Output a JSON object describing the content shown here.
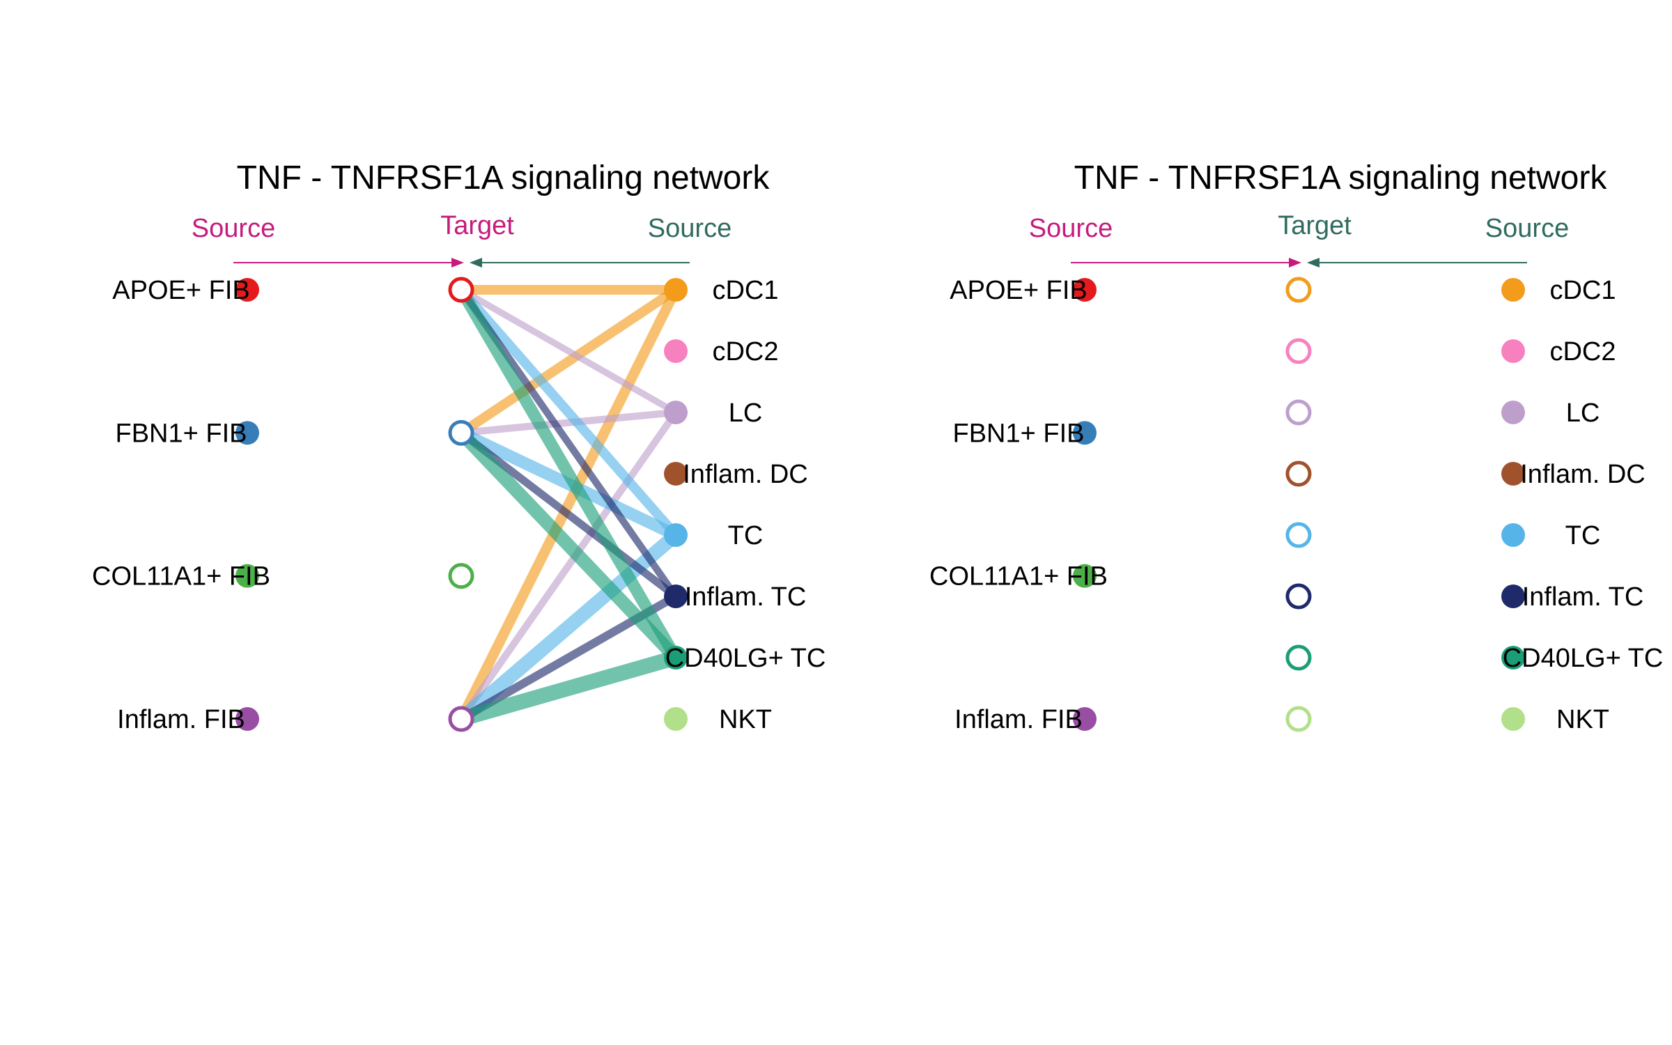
{
  "panels": [
    {
      "title": "TNF - TNFRSF1A signaling network",
      "header": {
        "left_source": "Source",
        "target": "Target",
        "right_source": "Source"
      },
      "left_sources": [
        {
          "label": "APOE+ FIB",
          "color": "#E41A1C"
        },
        {
          "label": "FBN1+ FIB",
          "color": "#377EB8"
        },
        {
          "label": "COL11A1+ FIB",
          "color": "#4DAF4A"
        },
        {
          "label": "Inflam. FIB",
          "color": "#984EA3"
        }
      ],
      "targets": [
        {
          "color": "#E41A1C"
        },
        {
          "color": "#377EB8"
        },
        {
          "color": "#4DAF4A"
        },
        {
          "color": "#984EA3"
        }
      ],
      "right_sources": [
        {
          "label": "cDC1",
          "color": "#F39B1B"
        },
        {
          "label": "cDC2",
          "color": "#F781BF"
        },
        {
          "label": "LC",
          "color": "#BE9FCC"
        },
        {
          "label": "Inflam. DC",
          "color": "#A0522D"
        },
        {
          "label": "TC",
          "color": "#56B4E9"
        },
        {
          "label": "Inflam. TC",
          "color": "#1F2A6B"
        },
        {
          "label": "CD40LG+ TC",
          "color": "#1B9E77"
        },
        {
          "label": "NKT",
          "color": "#B2DF8A"
        }
      ],
      "edges": [
        {
          "source": 0,
          "target": 0,
          "weight": 0.55
        },
        {
          "source": 0,
          "target": 1,
          "weight": 0.55
        },
        {
          "source": 0,
          "target": 3,
          "weight": 0.6
        },
        {
          "source": 2,
          "target": 0,
          "weight": 0.3
        },
        {
          "source": 2,
          "target": 1,
          "weight": 0.35
        },
        {
          "source": 2,
          "target": 3,
          "weight": 0.35
        },
        {
          "source": 4,
          "target": 0,
          "weight": 0.55
        },
        {
          "source": 4,
          "target": 1,
          "weight": 0.75
        },
        {
          "source": 4,
          "target": 3,
          "weight": 0.9
        },
        {
          "source": 5,
          "target": 0,
          "weight": 0.35
        },
        {
          "source": 5,
          "target": 1,
          "weight": 0.4
        },
        {
          "source": 5,
          "target": 3,
          "weight": 0.45
        },
        {
          "source": 6,
          "target": 0,
          "weight": 0.75
        },
        {
          "source": 6,
          "target": 1,
          "weight": 0.85
        },
        {
          "source": 6,
          "target": 3,
          "weight": 1.0
        }
      ]
    },
    {
      "title": "TNF - TNFRSF1A signaling network",
      "header": {
        "left_source": "Source",
        "target": "Target",
        "right_source": "Source"
      },
      "left_sources": [
        {
          "label": "APOE+ FIB",
          "color": "#E41A1C"
        },
        {
          "label": "FBN1+ FIB",
          "color": "#377EB8"
        },
        {
          "label": "COL11A1+ FIB",
          "color": "#4DAF4A"
        },
        {
          "label": "Inflam. FIB",
          "color": "#984EA3"
        }
      ],
      "targets": [
        {
          "color": "#F39B1B"
        },
        {
          "color": "#F781BF"
        },
        {
          "color": "#BE9FCC"
        },
        {
          "color": "#A0522D"
        },
        {
          "color": "#56B4E9"
        },
        {
          "color": "#1F2A6B"
        },
        {
          "color": "#1B9E77"
        },
        {
          "color": "#B2DF8A"
        }
      ],
      "right_sources": [
        {
          "label": "cDC1",
          "color": "#F39B1B"
        },
        {
          "label": "cDC2",
          "color": "#F781BF"
        },
        {
          "label": "LC",
          "color": "#BE9FCC"
        },
        {
          "label": "Inflam. DC",
          "color": "#A0522D"
        },
        {
          "label": "TC",
          "color": "#56B4E9"
        },
        {
          "label": "Inflam. TC",
          "color": "#1F2A6B"
        },
        {
          "label": "CD40LG+ TC",
          "color": "#1B9E77"
        },
        {
          "label": "NKT",
          "color": "#B2DF8A"
        }
      ],
      "edges": []
    }
  ],
  "colors": {
    "left_header": "#C51B7D",
    "right_header": "#2F6B5E",
    "text": "#000000"
  }
}
